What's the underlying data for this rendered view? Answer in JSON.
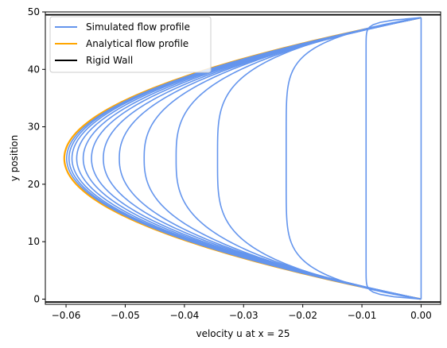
{
  "chart_data": {
    "type": "line",
    "title": "",
    "xlabel": "velocity u at x = 25",
    "ylabel": "y position",
    "xlim": [
      -0.0635,
      0.0033
    ],
    "ylim": [
      -0.9,
      50
    ],
    "x_ticks": [
      -0.06,
      -0.05,
      -0.04,
      -0.03,
      -0.02,
      -0.01,
      0.0
    ],
    "x_tick_labels": [
      "−0.06",
      "−0.05",
      "−0.04",
      "−0.03",
      "−0.02",
      "−0.01",
      "0.00"
    ],
    "y_ticks": [
      0,
      10,
      20,
      30,
      40,
      50
    ],
    "y_tick_labels": [
      "0",
      "10",
      "20",
      "30",
      "40",
      "50"
    ],
    "grid": false,
    "legend_placement": "top-left",
    "colors": {
      "simulated": "#6495ED",
      "analytical": "#FFA500",
      "wall": "#000000"
    },
    "profile": {
      "y_min": 0,
      "y_max": 49,
      "y_center": 24.5,
      "analytical_u_max": -0.0603
    },
    "simulated_profiles": [
      {
        "u_center": 0.0,
        "shape": 0
      },
      {
        "u_center": -0.0093,
        "shape": 20
      },
      {
        "u_center": -0.0228,
        "shape": 3.2
      },
      {
        "u_center": -0.0344,
        "shape": 1.9
      },
      {
        "u_center": -0.0414,
        "shape": 1.45
      },
      {
        "u_center": -0.0468,
        "shape": 1.25
      },
      {
        "u_center": -0.051,
        "shape": 1.12
      },
      {
        "u_center": -0.0537,
        "shape": 1.06
      },
      {
        "u_center": -0.0557,
        "shape": 1.03
      },
      {
        "u_center": -0.0571,
        "shape": 1.015
      },
      {
        "u_center": -0.0582,
        "shape": 1.008
      },
      {
        "u_center": -0.059,
        "shape": 1.004
      },
      {
        "u_center": -0.0595,
        "shape": 1.002
      },
      {
        "u_center": -0.0599,
        "shape": 1.0
      }
    ],
    "walls": [
      {
        "name": "Rigid Wall",
        "y": -0.5
      },
      {
        "name": "Rigid Wall",
        "y": 49.5
      }
    ],
    "series": [
      {
        "name": "Simulated flow profile",
        "color": "#6495ED"
      },
      {
        "name": "Analytical flow profile",
        "color": "#FFA500"
      },
      {
        "name": "Rigid Wall",
        "color": "#000000"
      }
    ]
  }
}
